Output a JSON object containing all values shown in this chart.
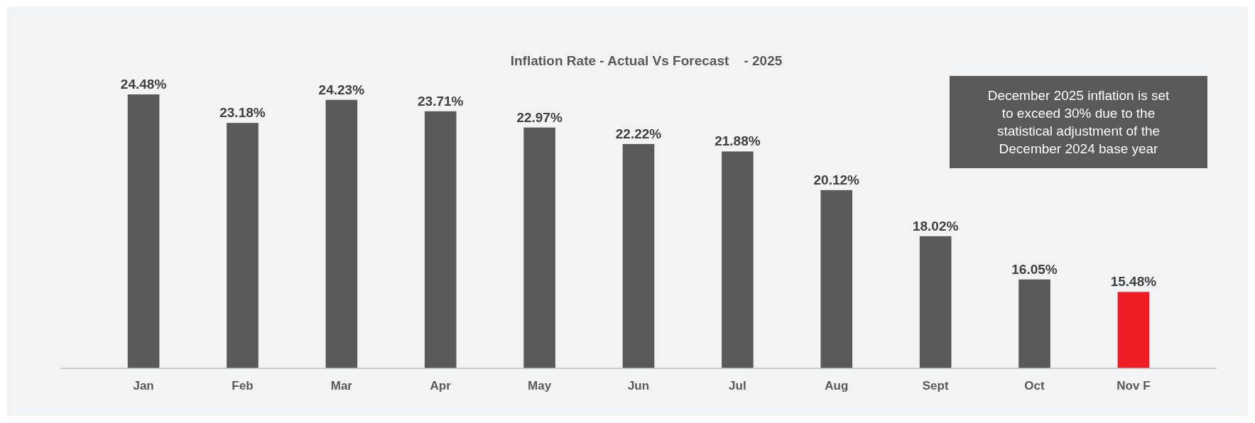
{
  "chart_data": {
    "type": "bar",
    "title": "Inflation Rate - Actual Vs Forecast    - 2025",
    "categories": [
      "Jan",
      "Feb",
      "Mar",
      "Apr",
      "May",
      "Jun",
      "Jul",
      "Aug",
      "Sept",
      "Oct",
      "Nov F"
    ],
    "values": [
      24.48,
      23.18,
      24.23,
      23.71,
      22.97,
      22.22,
      21.88,
      20.12,
      18.02,
      16.05,
      15.48
    ],
    "colors": [
      "#595959",
      "#595959",
      "#595959",
      "#595959",
      "#595959",
      "#595959",
      "#595959",
      "#595959",
      "#595959",
      "#595959",
      "#ee1c25"
    ],
    "value_labels": [
      "24.48%",
      "23.18%",
      "24.23%",
      "23.71%",
      "22.97%",
      "22.22%",
      "21.88%",
      "20.12%",
      "18.02%",
      "16.05%",
      "15.48%"
    ],
    "ylim": [
      12,
      24.48
    ],
    "tick_labels": "x",
    "grid": false,
    "annotations": [
      "December 2025 inflation is set to exceed 30% due to the statistical adjustment of the December 2024 base year"
    ]
  }
}
